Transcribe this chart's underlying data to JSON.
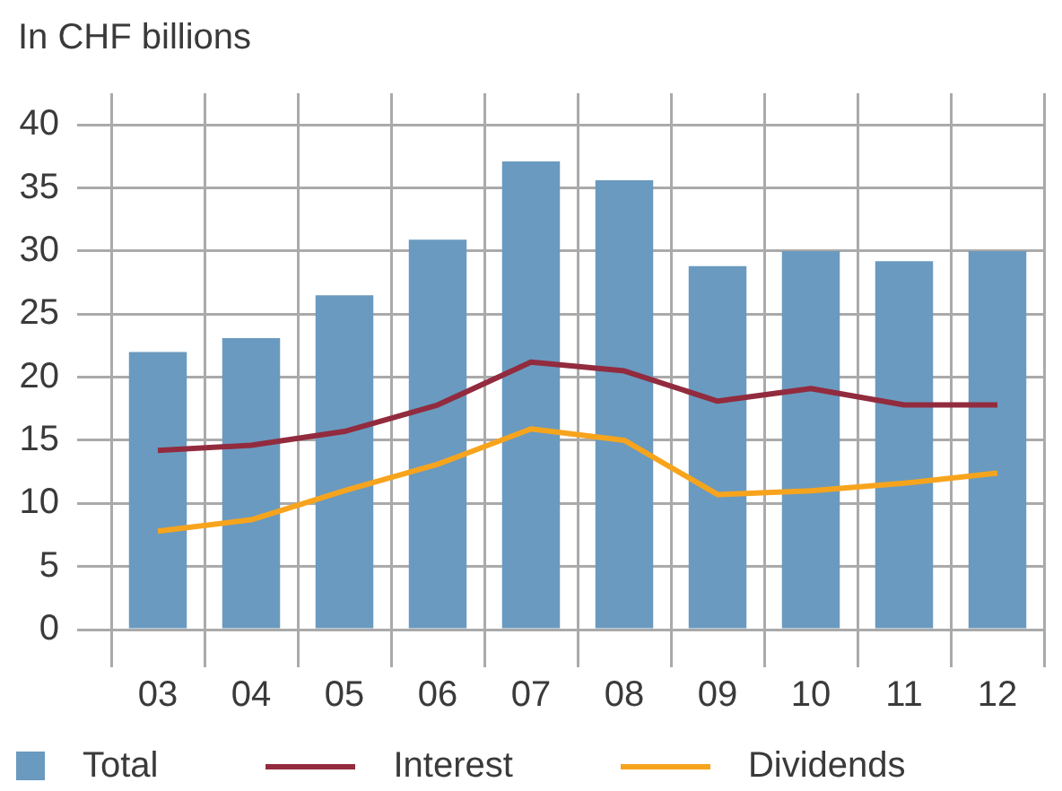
{
  "chart_data": {
    "type": "bar",
    "ylabel": "In CHF billions",
    "categories": [
      "03",
      "04",
      "05",
      "06",
      "07",
      "08",
      "09",
      "10",
      "11",
      "12"
    ],
    "series": [
      {
        "name": "Total",
        "color": "#6a9abf",
        "values": [
          22.0,
          23.1,
          26.5,
          30.9,
          37.1,
          35.6,
          28.8,
          30.0,
          29.2,
          30.0
        ]
      },
      {
        "name": "Interest",
        "type": "line",
        "color": "#922b3e",
        "values": [
          14.2,
          14.6,
          15.7,
          17.8,
          21.2,
          20.5,
          18.1,
          19.1,
          17.8,
          17.8
        ]
      },
      {
        "name": "Dividends",
        "type": "line",
        "color": "#f7a41d",
        "values": [
          7.8,
          8.7,
          11.0,
          13.1,
          15.9,
          15.0,
          10.7,
          11.0,
          11.6,
          12.4
        ]
      }
    ],
    "ylim": [
      0,
      42.5
    ],
    "yticks": [
      0,
      5,
      10,
      15,
      20,
      25,
      30,
      35,
      40
    ],
    "grid": true,
    "legend": "bottom",
    "marker": "none"
  }
}
